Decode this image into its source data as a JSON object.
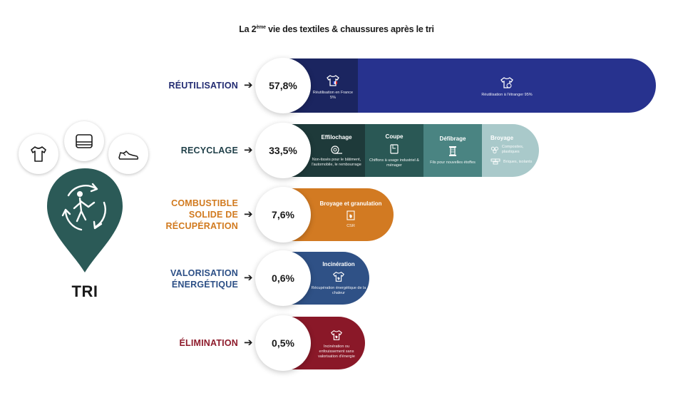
{
  "title": {
    "pre": "La 2",
    "sup": "ème",
    "post": " vie des textiles & chaussures après le tri"
  },
  "hub": {
    "label": "TRI",
    "color": "#2b5a57",
    "icons": [
      "tshirt-icon",
      "folded-textile-icon",
      "shoe-icon",
      "recycling-person-icon"
    ]
  },
  "rows": [
    {
      "label": "RÉUTILISATION",
      "percent": "57,8%",
      "value": 57.8,
      "label_color": "#232c72",
      "segments": [
        {
          "desc": "Réutilisation en France 5%",
          "color": "#1b2560",
          "icon": "tshirt-france-flag-icon"
        },
        {
          "desc": "Réutilisation à l'étranger 95%",
          "color": "#27328e",
          "icon": "tshirt-globe-icon"
        }
      ]
    },
    {
      "label": "RECYCLAGE",
      "percent": "33,5%",
      "value": 33.5,
      "label_color": "#1f3f48",
      "segments": [
        {
          "name": "Effilochage",
          "desc": "Non-tissés pour le bâtiment, l'automobile, le rembourrage",
          "color": "#1e3a3a",
          "icon": "fiber-roll-icon"
        },
        {
          "name": "Coupe",
          "desc": "Chiffons à usage industriel & ménager",
          "color": "#2a5855",
          "icon": "cloth-icon"
        },
        {
          "name": "Défibrage",
          "desc": "Fils pour nouvelles étoffes",
          "color": "#4a8482",
          "icon": "spool-icon"
        },
        {
          "name": "Broyage",
          "desc_a": "Composites, plastiques",
          "desc_b": "Briques, isolants",
          "color": "#a9c9ca",
          "icon": "granules-icon"
        }
      ]
    },
    {
      "label_lines": [
        "COMBUSTIBLE",
        "SOLIDE DE",
        "RÉCUPÉRATION"
      ],
      "percent": "7,6%",
      "value": 7.6,
      "label_color": "#d17a1f",
      "segments": [
        {
          "name": "Broyage et granulation",
          "desc": "CSR",
          "color": "#d27a22",
          "icon": "csr-flame-icon"
        }
      ]
    },
    {
      "label_lines": [
        "VALORISATION",
        "ÉNERGÉTIQUE"
      ],
      "percent": "0,6%",
      "value": 0.6,
      "label_color": "#2c4f86",
      "segments": [
        {
          "name": "Incinération",
          "desc": "Récupération énergétique de la chaleur",
          "color": "#2f5186",
          "icon": "tshirt-flame-icon"
        }
      ]
    },
    {
      "label": "ÉLIMINATION",
      "percent": "0,5%",
      "value": 0.5,
      "label_color": "#8e1b2b",
      "segments": [
        {
          "desc": "Incinération ou enfouissement sans valorisation d'énergie",
          "color": "#8a1828",
          "icon": "tshirt-flame-icon"
        }
      ]
    }
  ]
}
